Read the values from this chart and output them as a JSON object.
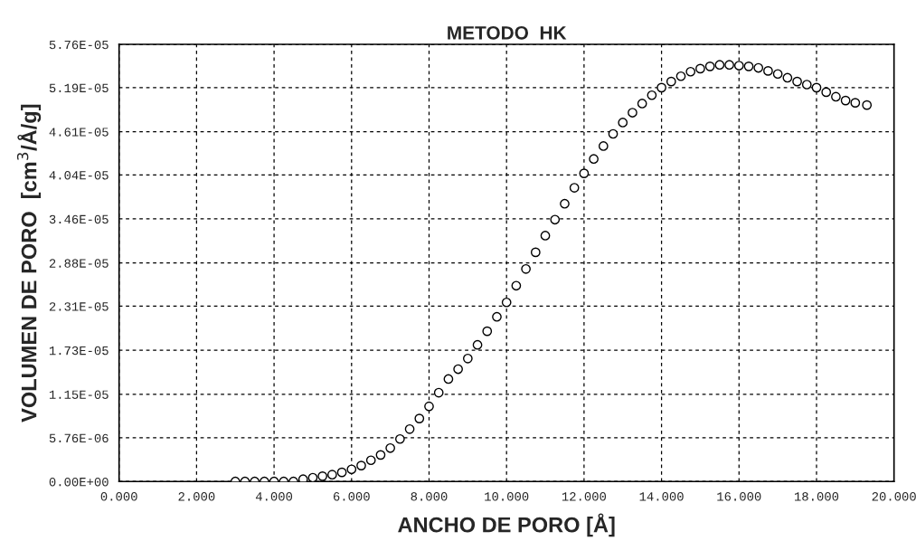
{
  "chart_data": {
    "type": "scatter",
    "title": "METODO  HK",
    "xlabel": "ANCHO DE PORO [Å]",
    "ylabel": "VOLUMEN DE PORO  [cm$^{3}$/Å/g]",
    "marker": "circle",
    "grid": true,
    "xlim": [
      0,
      20
    ],
    "ylim": [
      0,
      5.76e-05
    ],
    "xticks": [
      {
        "value": 0,
        "label": "0.000"
      },
      {
        "value": 2,
        "label": "2.000"
      },
      {
        "value": 4,
        "label": "4.000"
      },
      {
        "value": 6,
        "label": "6.000"
      },
      {
        "value": 8,
        "label": "8.000"
      },
      {
        "value": 10,
        "label": "10.000"
      },
      {
        "value": 12,
        "label": "12.000"
      },
      {
        "value": 14,
        "label": "14.000"
      },
      {
        "value": 16,
        "label": "16.000"
      },
      {
        "value": 18,
        "label": "18.000"
      },
      {
        "value": 20,
        "label": "20.000"
      }
    ],
    "yticks": [
      {
        "value": 0,
        "label": "0.00E+00"
      },
      {
        "value": 5.76e-06,
        "label": "5.76E-06"
      },
      {
        "value": 1.15e-05,
        "label": "1.15E-05"
      },
      {
        "value": 1.73e-05,
        "label": "1.73E-05"
      },
      {
        "value": 2.31e-05,
        "label": "2.31E-05"
      },
      {
        "value": 2.88e-05,
        "label": "2.88E-05"
      },
      {
        "value": 3.46e-05,
        "label": "3.46E-05"
      },
      {
        "value": 4.04e-05,
        "label": "4.04E-05"
      },
      {
        "value": 4.61e-05,
        "label": "4.61E-05"
      },
      {
        "value": 5.19e-05,
        "label": "5.19E-05"
      },
      {
        "value": 5.76e-05,
        "label": "5.76E-05"
      }
    ],
    "series": [
      {
        "color": "#000000",
        "x": [
          3.0,
          3.25,
          3.5,
          3.75,
          4.0,
          4.25,
          4.5,
          4.75,
          5.0,
          5.25,
          5.5,
          5.75,
          6.0,
          6.25,
          6.5,
          6.75,
          7.0,
          7.25,
          7.5,
          7.75,
          8.0,
          8.25,
          8.5,
          8.75,
          9.0,
          9.25,
          9.5,
          9.75,
          10.0,
          10.25,
          10.5,
          10.75,
          11.0,
          11.25,
          11.5,
          11.75,
          12.0,
          12.25,
          12.5,
          12.75,
          13.0,
          13.25,
          13.5,
          13.75,
          14.0,
          14.25,
          14.5,
          14.75,
          15.0,
          15.25,
          15.5,
          15.75,
          16.0,
          16.25,
          16.5,
          16.75,
          17.0,
          17.25,
          17.5,
          17.75,
          18.0,
          18.25,
          18.5,
          18.75,
          19.0,
          19.3
        ],
        "values": [
          0.0,
          0.0,
          0.0,
          0.0,
          0.0,
          0.0,
          0.0,
          3e-07,
          5e-07,
          7e-07,
          9e-07,
          1.2e-06,
          1.6e-06,
          2.1e-06,
          2.8e-06,
          3.5e-06,
          4.4e-06,
          5.6e-06,
          6.9e-06,
          8.3e-06,
          9.9e-06,
          1.17e-05,
          1.35e-05,
          1.48e-05,
          1.62e-05,
          1.8e-05,
          1.98e-05,
          2.17e-05,
          2.36e-05,
          2.58e-05,
          2.8e-05,
          3.02e-05,
          3.24e-05,
          3.45e-05,
          3.66e-05,
          3.87e-05,
          4.06e-05,
          4.25e-05,
          4.42e-05,
          4.58e-05,
          4.73e-05,
          4.86e-05,
          4.98e-05,
          5.09e-05,
          5.19e-05,
          5.27e-05,
          5.34e-05,
          5.4e-05,
          5.44e-05,
          5.47e-05,
          5.49e-05,
          5.49e-05,
          5.48e-05,
          5.47e-05,
          5.45e-05,
          5.41e-05,
          5.37e-05,
          5.32e-05,
          5.27e-05,
          5.23e-05,
          5.19e-05,
          5.13e-05,
          5.07e-05,
          5.02e-05,
          4.99e-05,
          4.96e-05
        ]
      }
    ]
  }
}
